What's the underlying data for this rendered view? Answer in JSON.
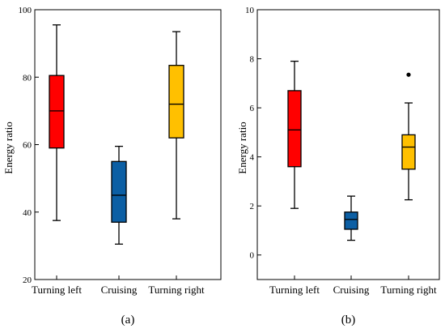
{
  "chart_data": [
    {
      "type": "box",
      "panel_label": "(a)",
      "title": "",
      "xlabel": "",
      "ylabel": "Energy ratio",
      "ylim": [
        20,
        100
      ],
      "yticks": [
        20,
        40,
        60,
        80,
        100
      ],
      "ytick_labels": [
        "20",
        "40",
        "60",
        "80",
        "100"
      ],
      "categories": [
        "Turning left",
        "Cruising",
        "Turning right"
      ],
      "colors": [
        "#ff0000",
        "#0c5fa4",
        "#ffc000"
      ],
      "boxes": [
        {
          "min": 37.5,
          "q1": 59,
          "median": 70,
          "q3": 80.5,
          "max": 95.5,
          "outliers": []
        },
        {
          "min": 30.5,
          "q1": 37,
          "median": 45,
          "q3": 55,
          "max": 59.5,
          "outliers": []
        },
        {
          "min": 38,
          "q1": 62,
          "median": 72,
          "q3": 83.5,
          "max": 93.5,
          "outliers": []
        }
      ]
    },
    {
      "type": "box",
      "panel_label": "(b)",
      "title": "",
      "xlabel": "",
      "ylabel": "Energy ratio",
      "ylim": [
        -1,
        10
      ],
      "yticks": [
        0,
        2,
        4,
        6,
        8,
        10
      ],
      "ytick_labels": [
        "0",
        "2",
        "4",
        "6",
        "8",
        "10"
      ],
      "categories": [
        "Turning left",
        "Cruising",
        "Turning right"
      ],
      "colors": [
        "#ff0000",
        "#0c5fa4",
        "#ffc000"
      ],
      "boxes": [
        {
          "min": 1.9,
          "q1": 3.6,
          "median": 5.1,
          "q3": 6.7,
          "max": 7.9,
          "outliers": []
        },
        {
          "min": 0.6,
          "q1": 1.05,
          "median": 1.45,
          "q3": 1.75,
          "max": 2.4,
          "outliers": []
        },
        {
          "min": 2.25,
          "q1": 3.5,
          "median": 4.4,
          "q3": 4.9,
          "max": 6.2,
          "outliers": [
            7.35
          ]
        }
      ]
    }
  ]
}
